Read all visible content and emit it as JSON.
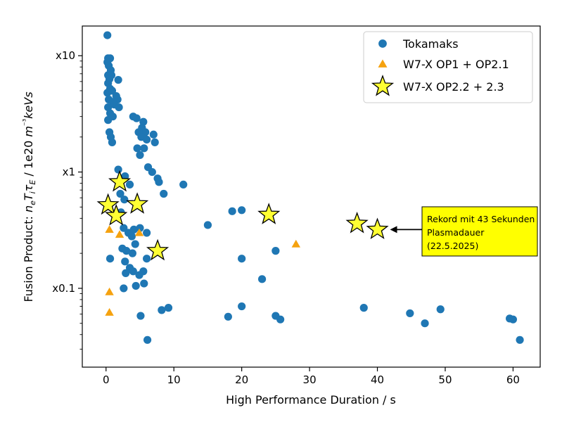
{
  "chart_data": {
    "type": "scatter",
    "xlabel": "High Performance Duration / s",
    "ylabel": "Fusion Product:  n_e T_i τ_E  /  1e20 m⁻³ keVs",
    "xlim": [
      -3.5,
      64
    ],
    "ylim": [
      0.021,
      18
    ],
    "yscale": "log",
    "x_ticks": [
      0,
      10,
      20,
      30,
      40,
      50,
      60
    ],
    "y_ticks": [
      {
        "value": 10,
        "label": "x10"
      },
      {
        "value": 1,
        "label": "x1"
      },
      {
        "value": 0.1,
        "label": "x0.1"
      }
    ],
    "grid": false,
    "legend_position": "top-right",
    "series": [
      {
        "name": "Tokamaks",
        "marker": "circle",
        "color": "#1f77b4",
        "points": [
          [
            0.2,
            15
          ],
          [
            0.3,
            9.5
          ],
          [
            0.6,
            9.5
          ],
          [
            0.2,
            8.8
          ],
          [
            0.4,
            8.2
          ],
          [
            0.7,
            7.5
          ],
          [
            0.3,
            6.8
          ],
          [
            0.5,
            6.3
          ],
          [
            0.8,
            6.8
          ],
          [
            1.8,
            6.2
          ],
          [
            0.3,
            5.8
          ],
          [
            0.6,
            5.2
          ],
          [
            0.2,
            4.8
          ],
          [
            0.9,
            5.0
          ],
          [
            1.5,
            4.5
          ],
          [
            0.4,
            4.2
          ],
          [
            1.0,
            4.0
          ],
          [
            1.7,
            4.2
          ],
          [
            0.3,
            3.6
          ],
          [
            1.2,
            3.8
          ],
          [
            1.9,
            3.6
          ],
          [
            0.6,
            3.2
          ],
          [
            0.3,
            2.8
          ],
          [
            1.0,
            3.0
          ],
          [
            0.5,
            2.2
          ],
          [
            0.7,
            2.0
          ],
          [
            0.9,
            1.8
          ],
          [
            4.0,
            3.0
          ],
          [
            4.5,
            2.9
          ],
          [
            5.5,
            2.7
          ],
          [
            5.3,
            2.4
          ],
          [
            5.8,
            2.2
          ],
          [
            4.8,
            2.2
          ],
          [
            5.2,
            2.0
          ],
          [
            6.0,
            1.9
          ],
          [
            7.0,
            2.1
          ],
          [
            7.2,
            1.8
          ],
          [
            5.6,
            1.6
          ],
          [
            4.6,
            1.6
          ],
          [
            5.0,
            1.4
          ],
          [
            6.2,
            1.1
          ],
          [
            6.8,
            1.0
          ],
          [
            7.6,
            0.88
          ],
          [
            7.8,
            0.82
          ],
          [
            8.5,
            0.65
          ],
          [
            11.4,
            0.78
          ],
          [
            1.8,
            1.05
          ],
          [
            2.8,
            0.92
          ],
          [
            3.5,
            0.78
          ],
          [
            2.1,
            0.65
          ],
          [
            2.7,
            0.58
          ],
          [
            2.2,
            0.45
          ],
          [
            2.6,
            0.33
          ],
          [
            3.3,
            0.3
          ],
          [
            4.1,
            0.32
          ],
          [
            5.0,
            0.33
          ],
          [
            6.0,
            0.3
          ],
          [
            3.8,
            0.28
          ],
          [
            4.3,
            0.24
          ],
          [
            2.4,
            0.22
          ],
          [
            3.0,
            0.21
          ],
          [
            3.9,
            0.2
          ],
          [
            2.8,
            0.17
          ],
          [
            6.0,
            0.18
          ],
          [
            0.6,
            0.18
          ],
          [
            3.5,
            0.15
          ],
          [
            4.0,
            0.14
          ],
          [
            2.9,
            0.135
          ],
          [
            5.5,
            0.14
          ],
          [
            4.9,
            0.13
          ],
          [
            4.4,
            0.105
          ],
          [
            5.6,
            0.11
          ],
          [
            2.6,
            0.1
          ],
          [
            8.2,
            0.065
          ],
          [
            9.2,
            0.068
          ],
          [
            5.1,
            0.058
          ],
          [
            6.1,
            0.036
          ],
          [
            15.0,
            0.35
          ],
          [
            18.6,
            0.46
          ],
          [
            20.0,
            0.47
          ],
          [
            25.0,
            0.21
          ],
          [
            20.0,
            0.18
          ],
          [
            23.0,
            0.12
          ],
          [
            20.0,
            0.07
          ],
          [
            18.0,
            0.057
          ],
          [
            25.0,
            0.058
          ],
          [
            25.7,
            0.054
          ],
          [
            38.0,
            0.068
          ],
          [
            44.8,
            0.061
          ],
          [
            47.0,
            0.05
          ],
          [
            49.3,
            0.066
          ],
          [
            59.5,
            0.055
          ],
          [
            60.0,
            0.054
          ],
          [
            61.0,
            0.036
          ]
        ]
      },
      {
        "name": "W7-X OP1 + OP2.1",
        "marker": "triangle",
        "color": "#f5a20f",
        "points": [
          [
            0.4,
            0.5
          ],
          [
            0.5,
            0.32
          ],
          [
            2.0,
            0.29
          ],
          [
            4.9,
            0.3
          ],
          [
            28.0,
            0.24
          ],
          [
            0.5,
            0.093
          ],
          [
            0.5,
            0.062
          ]
        ]
      },
      {
        "name": "W7-X OP2.2 + 2.3",
        "marker": "star",
        "color": "#ffff33",
        "points": [
          [
            2.0,
            0.82
          ],
          [
            0.3,
            0.52
          ],
          [
            4.6,
            0.53
          ],
          [
            1.5,
            0.42
          ],
          [
            7.6,
            0.21
          ],
          [
            24.0,
            0.43
          ],
          [
            37.0,
            0.36
          ],
          [
            40.0,
            0.32
          ]
        ]
      }
    ],
    "annotation": {
      "lines": [
        "Rekord mit 43 Sekunden",
        "Plasmadauer",
        "(22.5.2025)"
      ],
      "target": [
        40.0,
        0.32
      ],
      "box_color": "#ffff00"
    }
  }
}
